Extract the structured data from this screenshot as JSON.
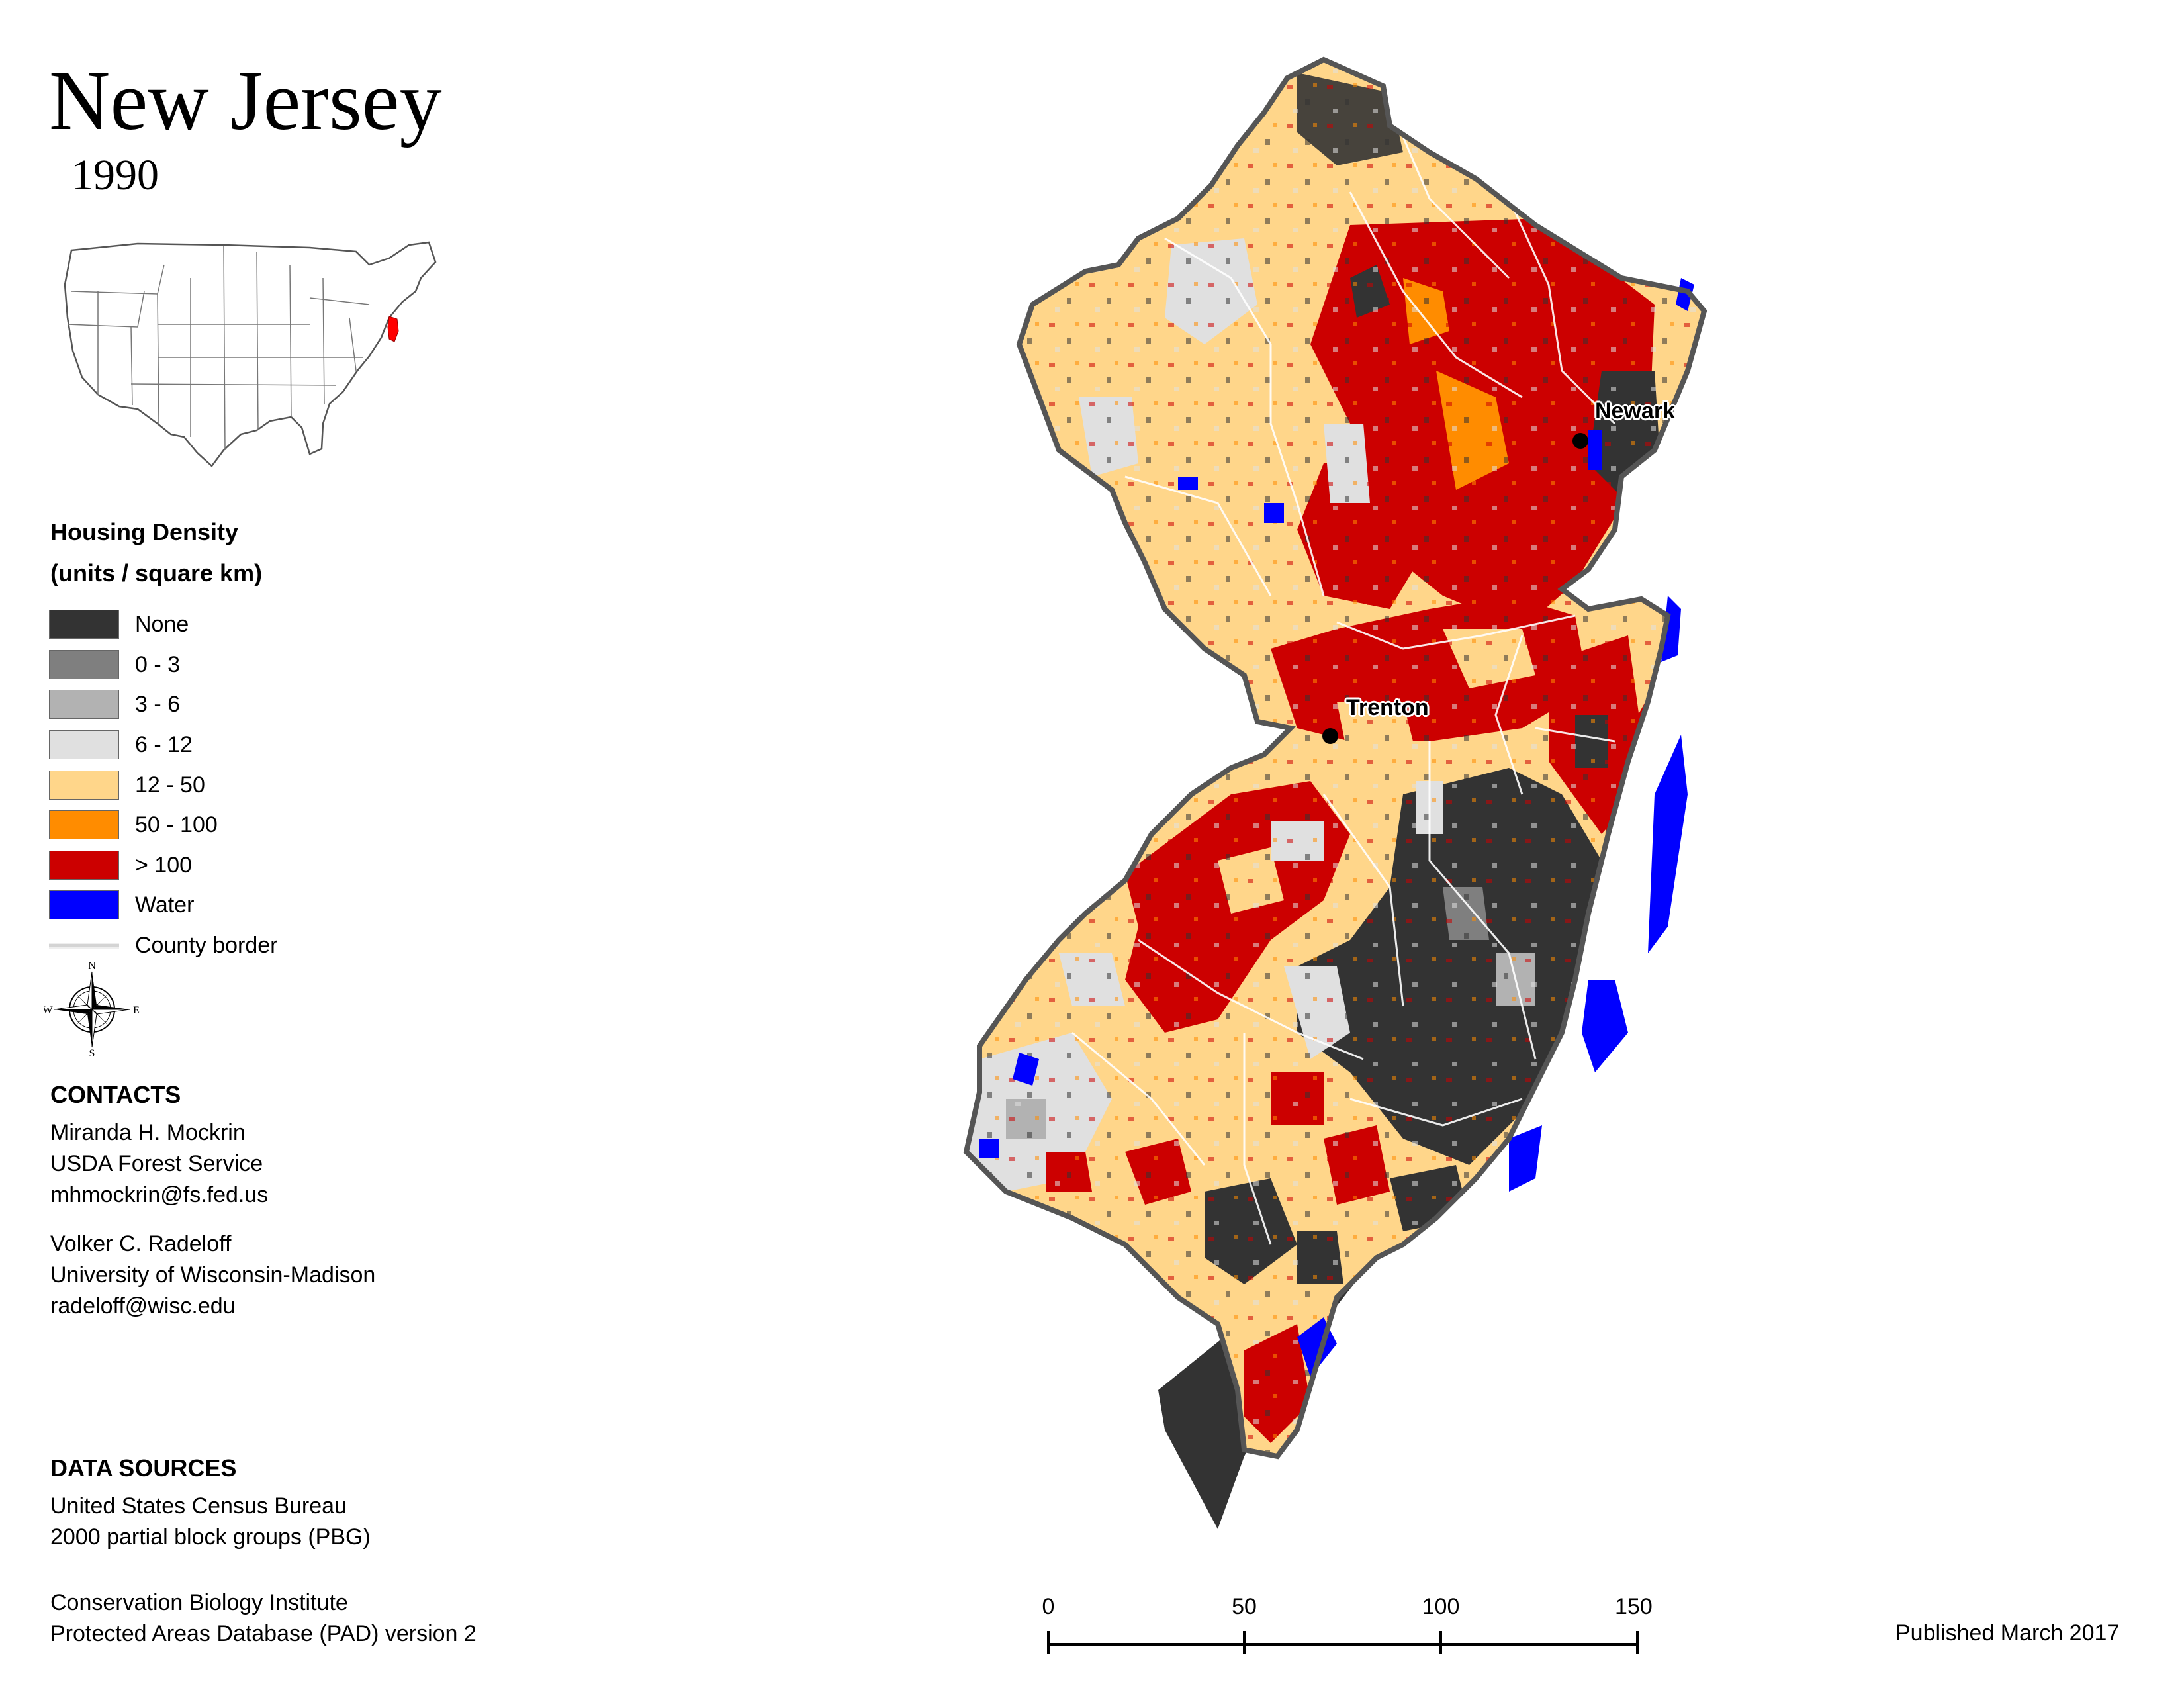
{
  "title": "New Jersey",
  "year": "1990",
  "legend": {
    "title": "Housing Density",
    "subtitle": "(units / square km)",
    "items": [
      {
        "label": "None",
        "color": "#333333"
      },
      {
        "label": "0 - 3",
        "color": "#7f7f7f"
      },
      {
        "label": "3 - 6",
        "color": "#b2b2b2"
      },
      {
        "label": "6 - 12",
        "color": "#e0e0e0"
      },
      {
        "label": "12 - 50",
        "color": "#ffd68a"
      },
      {
        "label": "50 - 100",
        "color": "#ff8c00"
      },
      {
        "label": "> 100",
        "color": "#cc0000"
      },
      {
        "label": "Water",
        "color": "#0000ff"
      }
    ],
    "border_label": "County border"
  },
  "compass": {
    "n": "N",
    "s": "S",
    "e": "E",
    "w": "W"
  },
  "contacts": {
    "heading": "CONTACTS",
    "people": [
      {
        "name": "Miranda H. Mockrin",
        "org": "USDA Forest Service",
        "email": "mhmockrin@fs.fed.us"
      },
      {
        "name": "Volker C. Radeloff",
        "org": "University of Wisconsin-Madison",
        "email": "radeloff@wisc.edu"
      }
    ]
  },
  "data_sources": {
    "heading": "DATA SOURCES",
    "sources": [
      {
        "line1": "United States Census Bureau",
        "line2": "2000 partial block groups (PBG)"
      },
      {
        "line1": "Conservation Biology Institute",
        "line2": "Protected Areas Database (PAD) version 2"
      }
    ]
  },
  "cities": [
    {
      "name": "Newark"
    },
    {
      "name": "Trenton"
    }
  ],
  "scale_bar": {
    "ticks": [
      "0",
      "50",
      "100",
      "150 km"
    ]
  },
  "published": "Published March 2017"
}
